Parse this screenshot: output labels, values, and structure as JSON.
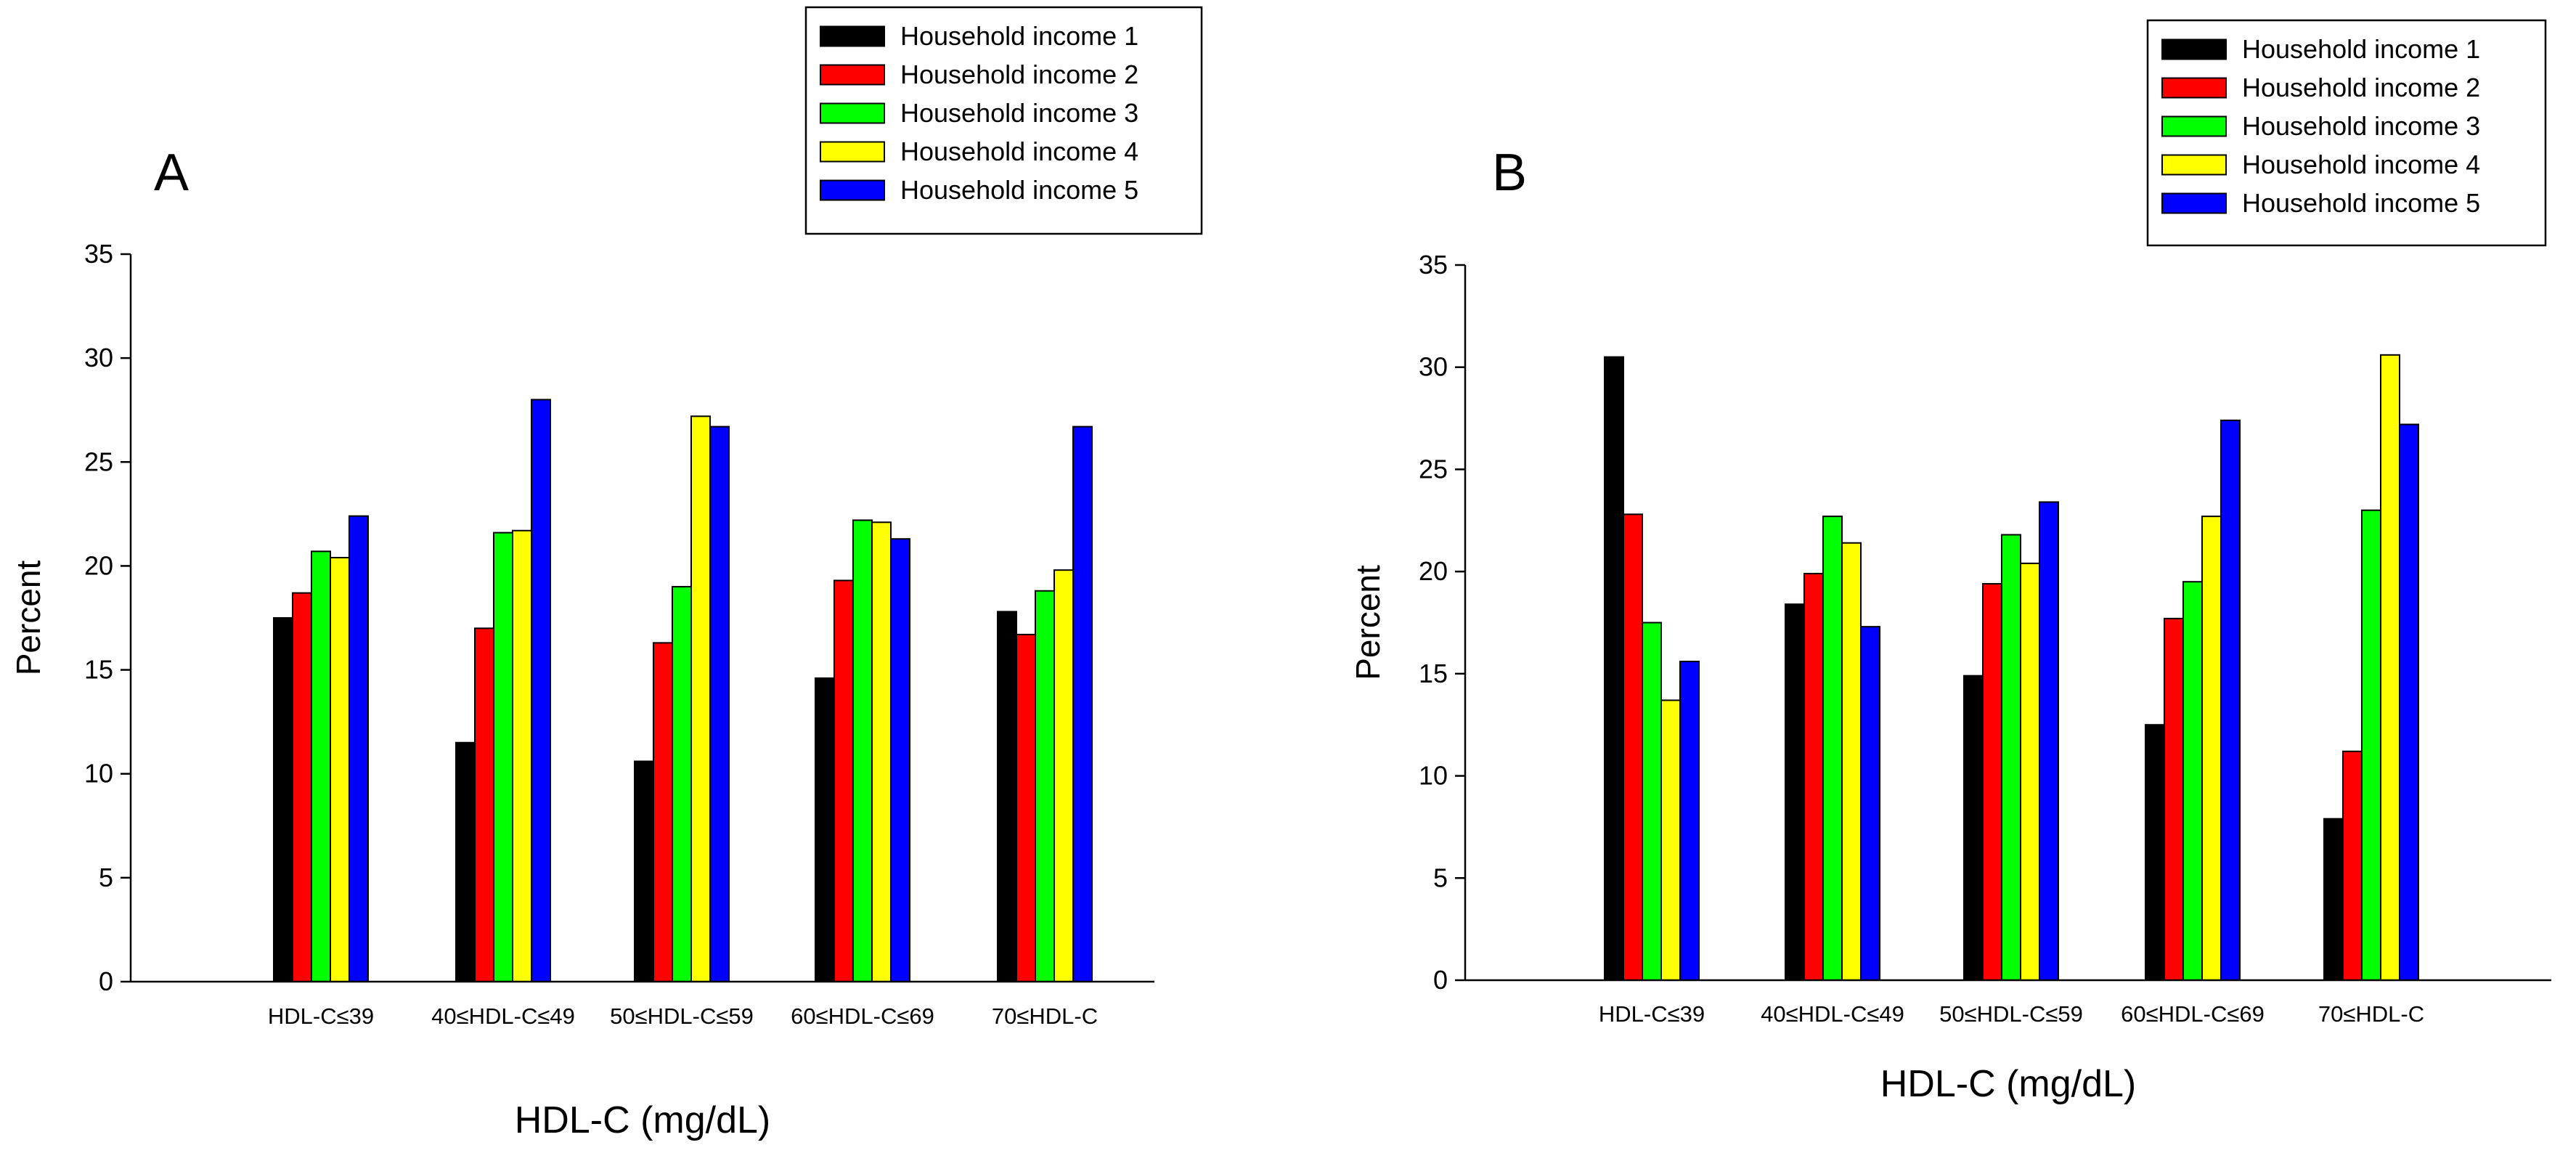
{
  "chart_data": [
    {
      "type": "bar",
      "panel_label": "A",
      "xlabel": "HDL-C (mg/dL)",
      "ylabel": "Percent",
      "ylim": [
        0,
        35
      ],
      "yticks": [
        0,
        5,
        10,
        15,
        20,
        25,
        30,
        35
      ],
      "ytick_labels": [
        "0",
        "5",
        "10",
        "15",
        "20",
        "25",
        "30",
        "35"
      ],
      "categories": [
        "HDL-C≤39",
        "40≤HDL-C≤49",
        "50≤HDL-C≤59",
        "60≤HDL-C≤69",
        "70≤HDL-C"
      ],
      "series": [
        {
          "name": "Household income 1",
          "color": "#000000",
          "values": [
            17.5,
            11.5,
            10.6,
            14.6,
            17.8
          ]
        },
        {
          "name": "Household income 2",
          "color": "#ff0000",
          "values": [
            18.7,
            17.0,
            16.3,
            19.3,
            16.7
          ]
        },
        {
          "name": "Household income 3",
          "color": "#00ff00",
          "values": [
            20.7,
            21.6,
            19.0,
            22.2,
            18.8
          ]
        },
        {
          "name": "Household income 4",
          "color": "#ffff00",
          "values": [
            20.4,
            21.7,
            27.2,
            22.1,
            19.8
          ]
        },
        {
          "name": "Household income 5",
          "color": "#0000ff",
          "values": [
            22.4,
            28.0,
            26.7,
            21.3,
            26.7
          ]
        }
      ],
      "legend_position": "top-right",
      "grid": false
    },
    {
      "type": "bar",
      "panel_label": "B",
      "xlabel": "HDL-C (mg/dL)",
      "ylabel": "Percent",
      "ylim": [
        0,
        35
      ],
      "yticks": [
        0,
        5,
        10,
        15,
        20,
        25,
        30,
        35
      ],
      "ytick_labels": [
        "0",
        "5",
        "10",
        "15",
        "20",
        "25",
        "30",
        "35"
      ],
      "categories": [
        "HDL-C≤39",
        "40≤HDL-C≤49",
        "50≤HDL-C≤59",
        "60≤HDL-C≤69",
        "70≤HDL-C"
      ],
      "series": [
        {
          "name": "Household income 1",
          "color": "#000000",
          "values": [
            30.5,
            18.4,
            14.9,
            12.5,
            7.9
          ]
        },
        {
          "name": "Household income 2",
          "color": "#ff0000",
          "values": [
            22.8,
            19.9,
            19.4,
            17.7,
            11.2
          ]
        },
        {
          "name": "Household income 3",
          "color": "#00ff00",
          "values": [
            17.5,
            22.7,
            21.8,
            19.5,
            23.0
          ]
        },
        {
          "name": "Household income 4",
          "color": "#ffff00",
          "values": [
            13.7,
            21.4,
            20.4,
            22.7,
            30.6
          ]
        },
        {
          "name": "Household income 5",
          "color": "#0000ff",
          "values": [
            15.6,
            17.3,
            23.4,
            27.4,
            27.2
          ]
        }
      ],
      "legend_position": "top-right",
      "grid": false
    }
  ]
}
